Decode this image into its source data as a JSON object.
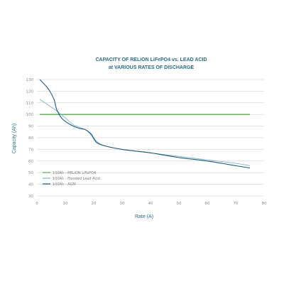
{
  "chart_data": {
    "type": "line",
    "title": [
      "CAPACITY OF RELiON LiFePO4 vs. LEAD ACID",
      "at VARIOUS RATES OF DISCHARGE"
    ],
    "xlabel": "Rate (A)",
    "ylabel": "Capacity (Ah)",
    "xlim": [
      0,
      80
    ],
    "ylim": [
      30,
      130
    ],
    "xticks": [
      0,
      10,
      20,
      30,
      40,
      50,
      60,
      70,
      80
    ],
    "yticks": [
      30,
      40,
      50,
      60,
      70,
      80,
      90,
      100,
      110,
      120,
      130
    ],
    "xtick_labels": [
      "0",
      "10",
      "20",
      "30",
      "40",
      "50",
      "60",
      "70",
      "80"
    ],
    "ytick_labels": [
      "30",
      "40",
      "50",
      "60",
      "70",
      "80",
      "90",
      "100",
      "110",
      "120",
      "130"
    ],
    "grid": "horizontal",
    "legend_position": "lower-left",
    "series": [
      {
        "name": "100Ah - RELiON LiFePO4",
        "color": "#5aa84a",
        "width": 1.3,
        "x": [
          1,
          75
        ],
        "y": [
          100,
          100
        ]
      },
      {
        "name": "100Ah - Flooded Lead Acid",
        "color": "#7fb6cf",
        "width": 0.9,
        "x": [
          1,
          4,
          7,
          10,
          13,
          16,
          19,
          21,
          24,
          30,
          40,
          50,
          60,
          70,
          75
        ],
        "y": [
          113,
          108,
          103,
          97,
          91,
          88,
          84,
          77,
          73,
          70,
          67,
          64,
          61,
          58,
          56
        ]
      },
      {
        "name": "100Ah - AGM",
        "color": "#1f5b78",
        "width": 1.1,
        "x": [
          1,
          4,
          6,
          7,
          9,
          12,
          15,
          17,
          19,
          21,
          24,
          30,
          40,
          50,
          60,
          70,
          75
        ],
        "y": [
          130,
          122,
          113,
          104,
          96,
          91,
          88,
          87,
          83,
          76,
          73,
          70,
          67,
          63,
          60,
          56,
          54
        ]
      }
    ]
  }
}
